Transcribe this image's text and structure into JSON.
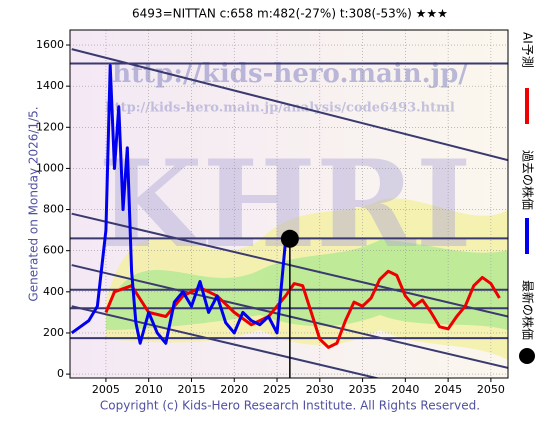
{
  "chart_data": {
    "type": "line",
    "title": "6493=NITTAN    c:658  m:482(-27%)  t:308(-53%)  ★★★",
    "watermark_url": "http://kids-hero.main.jp/",
    "watermark_page": "http://kids-hero.main.jp/analysis/code6493.html",
    "watermark_logo": "KHRI",
    "generated": "Generated on Monday 2026/1/5.",
    "copyright": "Copyright (c) Kids-Hero Research Institute. All Rights Reserved.",
    "xlim": [
      2000.8,
      2052
    ],
    "ylim": [
      -19,
      1673
    ],
    "xticks": [
      2005,
      2010,
      2015,
      2020,
      2025,
      2030,
      2035,
      2040,
      2045,
      2050
    ],
    "yticks": [
      0,
      200,
      400,
      600,
      800,
      1000,
      1200,
      1400,
      1600
    ],
    "grid": true,
    "series": [
      {
        "name": "AI予測",
        "color": "#ee0000",
        "x": [
          2005,
          2006,
          2008,
          2010,
          2012,
          2014,
          2016,
          2018,
          2020,
          2022,
          2024,
          2026,
          2027,
          2028,
          2029,
          2030,
          2031,
          2032,
          2033,
          2034,
          2035,
          2036,
          2037,
          2038,
          2039,
          2040,
          2041,
          2042,
          2043,
          2044,
          2045,
          2046,
          2047,
          2048,
          2049,
          2050,
          2051
        ],
        "values": [
          300,
          400,
          430,
          300,
          280,
          380,
          420,
          380,
          300,
          240,
          280,
          380,
          440,
          430,
          300,
          170,
          130,
          150,
          260,
          350,
          330,
          370,
          460,
          500,
          480,
          380,
          330,
          360,
          300,
          230,
          220,
          280,
          330,
          430,
          470,
          440,
          370
        ]
      },
      {
        "name": "過去の株価",
        "color": "#0000ee",
        "x": [
          2001,
          2002,
          2003,
          2004,
          2005,
          2005.5,
          2006,
          2006.5,
          2007,
          2007.5,
          2008,
          2008.5,
          2009,
          2010,
          2011,
          2012,
          2013,
          2014,
          2015,
          2016,
          2017,
          2018,
          2019,
          2020,
          2021,
          2022,
          2023,
          2024,
          2025,
          2026,
          2026.5
        ],
        "values": [
          200,
          230,
          260,
          330,
          700,
          1500,
          1000,
          1300,
          800,
          1100,
          500,
          250,
          150,
          300,
          200,
          150,
          350,
          400,
          330,
          450,
          300,
          380,
          250,
          200,
          300,
          260,
          240,
          280,
          200,
          650,
          658
        ]
      }
    ],
    "latest": {
      "name": "最新の株価",
      "color": "#000000",
      "x": 2026.5,
      "y": 658
    },
    "hlines": [
      1510,
      660,
      410,
      320,
      175
    ],
    "trend_lines": [
      [
        2001,
        1580,
        2052,
        1040
      ],
      [
        2001,
        780,
        2052,
        280
      ],
      [
        2001,
        530,
        2052,
        30
      ],
      [
        2001,
        330,
        2052,
        -170
      ]
    ]
  }
}
